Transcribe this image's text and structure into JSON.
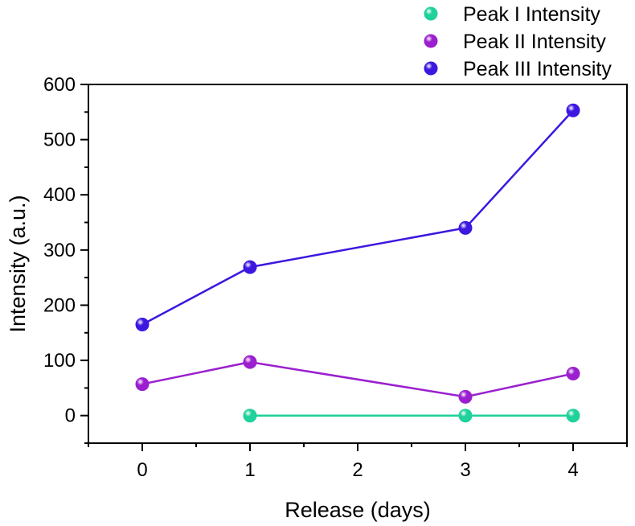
{
  "chart_data": {
    "type": "line",
    "title": "",
    "xlabel": "Release (days)",
    "ylabel": "Intensity (a.u.)",
    "xlim": [
      -0.5,
      4.5
    ],
    "ylim": [
      -50,
      600
    ],
    "x_ticks": [
      0,
      1,
      2,
      3,
      4
    ],
    "y_ticks": [
      0,
      100,
      200,
      300,
      400,
      500,
      600
    ],
    "grid": false,
    "legend_position": "top-right",
    "series": [
      {
        "name": "Peak I Intensity",
        "color": "#1fd19a",
        "x": [
          1,
          3,
          4
        ],
        "y": [
          0,
          0,
          0
        ]
      },
      {
        "name": "Peak II Intensity",
        "color": "#9b1fcf",
        "x": [
          0,
          1,
          3,
          4
        ],
        "y": [
          57,
          97,
          34,
          76
        ]
      },
      {
        "name": "Peak III Intensity",
        "color": "#3d17e0",
        "x": [
          0,
          1,
          3,
          4
        ],
        "y": [
          165,
          269,
          340,
          553
        ]
      }
    ]
  }
}
